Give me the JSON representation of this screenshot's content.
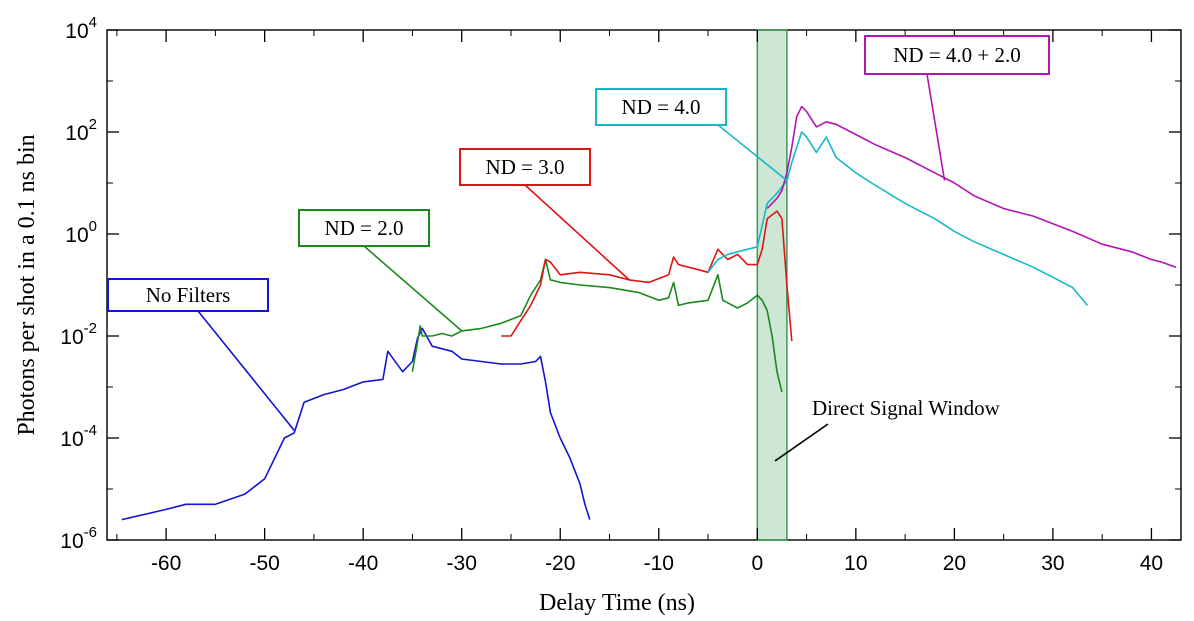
{
  "chart_data": {
    "type": "line",
    "title": "",
    "xlabel": "Delay Time (ns)",
    "ylabel": "Photons per shot in a 0.1 ns bin",
    "xlim": [
      -66,
      43
    ],
    "ylim_log10": [
      -6,
      4
    ],
    "yscale": "log",
    "x_ticks": [
      -60,
      -50,
      -40,
      -30,
      -20,
      -10,
      0,
      10,
      20,
      30,
      40
    ],
    "x_tick_labels": [
      "-60",
      "-50",
      "-40",
      "-30",
      "-20",
      "-10",
      "0",
      "10",
      "20",
      "30",
      "40"
    ],
    "y_ticks_log10": [
      -6,
      -4,
      -2,
      0,
      2,
      4
    ],
    "y_tick_labels": [
      {
        "base": "10",
        "exp": "-6"
      },
      {
        "base": "10",
        "exp": "-4"
      },
      {
        "base": "10",
        "exp": "-2"
      },
      {
        "base": "10",
        "exp": "0"
      },
      {
        "base": "10",
        "exp": "2"
      },
      {
        "base": "10",
        "exp": "4"
      }
    ],
    "grid": false,
    "shaded_region": {
      "x": [
        0,
        3
      ],
      "label": "Direct Signal Window",
      "color": "#3a9a55"
    },
    "series": [
      {
        "name": "No Filters",
        "color": "#1414d2",
        "x": [
          -64.5,
          -60,
          -58,
          -55,
          -52,
          -50,
          -48,
          -47,
          -46,
          -44,
          -42,
          -40,
          -38,
          -37.5,
          -36,
          -35,
          -34.5,
          -34,
          -33,
          -31,
          -30,
          -28,
          -26,
          -24,
          -22.5,
          -22,
          -21.5,
          -21,
          -20,
          -19,
          -18,
          -17.5,
          -17
        ],
        "log10_y": [
          -5.6,
          -5.4,
          -5.3,
          -5.3,
          -5.1,
          -4.8,
          -4.0,
          -3.9,
          -3.3,
          -3.15,
          -3.05,
          -2.9,
          -2.85,
          -2.3,
          -2.7,
          -2.5,
          -2.05,
          -1.85,
          -2.2,
          -2.3,
          -2.45,
          -2.5,
          -2.55,
          -2.55,
          -2.5,
          -2.4,
          -2.9,
          -3.5,
          -4.0,
          -4.4,
          -4.9,
          -5.3,
          -5.6
        ]
      },
      {
        "name": "ND = 2.0",
        "color": "#1a8a1a",
        "x": [
          -35,
          -34.2,
          -34,
          -33,
          -32,
          -31,
          -30,
          -28,
          -26,
          -24,
          -23,
          -22,
          -21.5,
          -21,
          -20,
          -18,
          -15,
          -12,
          -10,
          -9,
          -8.5,
          -8,
          -7,
          -5,
          -4,
          -3.5,
          -3,
          -2,
          -1,
          0,
          0.5,
          1,
          1.5,
          2,
          2.5
        ],
        "log10_y": [
          -2.7,
          -1.8,
          -2.0,
          -2.0,
          -1.95,
          -2.0,
          -1.9,
          -1.85,
          -1.75,
          -1.6,
          -1.2,
          -0.9,
          -0.5,
          -0.9,
          -0.95,
          -1.0,
          -1.05,
          -1.15,
          -1.3,
          -1.25,
          -0.95,
          -1.4,
          -1.35,
          -1.3,
          -0.8,
          -1.3,
          -1.35,
          -1.45,
          -1.35,
          -1.2,
          -1.3,
          -1.5,
          -2.0,
          -2.7,
          -3.1
        ]
      },
      {
        "name": "ND = 3.0",
        "color": "#e01414",
        "x": [
          -26,
          -25,
          -24,
          -23,
          -22,
          -21.5,
          -21,
          -20,
          -18,
          -15,
          -13,
          -11,
          -9,
          -8.5,
          -8,
          -7,
          -6,
          -5,
          -4,
          -3.5,
          -3,
          -2,
          -1,
          0,
          0.5,
          1,
          2,
          2.5,
          3,
          3.5
        ],
        "log10_y": [
          -2.0,
          -2.0,
          -1.7,
          -1.4,
          -1.0,
          -0.5,
          -0.55,
          -0.8,
          -0.75,
          -0.8,
          -0.9,
          -0.95,
          -0.8,
          -0.45,
          -0.6,
          -0.65,
          -0.7,
          -0.75,
          -0.3,
          -0.4,
          -0.5,
          -0.4,
          -0.6,
          -0.6,
          -0.3,
          0.3,
          0.45,
          0.3,
          -1.0,
          -2.1
        ]
      },
      {
        "name": "ND = 4.0",
        "color": "#14b9c8",
        "x": [
          -5,
          -4,
          -3,
          -2,
          -1,
          0,
          1,
          2,
          3,
          3.5,
          4,
          4.5,
          5,
          6,
          7,
          8,
          10,
          12,
          15,
          18,
          20,
          22,
          25,
          28,
          30,
          32,
          33.5
        ],
        "log10_y": [
          -0.75,
          -0.5,
          -0.4,
          -0.35,
          -0.3,
          -0.25,
          0.6,
          0.8,
          1.05,
          1.4,
          1.7,
          2.0,
          1.9,
          1.6,
          1.9,
          1.5,
          1.2,
          0.95,
          0.6,
          0.3,
          0.05,
          -0.15,
          -0.4,
          -0.65,
          -0.85,
          -1.05,
          -1.4
        ]
      },
      {
        "name": "ND = 4.0 + 2.0",
        "color": "#b414b4",
        "x": [
          1,
          2,
          2.5,
          3,
          3.5,
          4,
          4.5,
          5,
          6,
          7,
          8,
          10,
          12,
          15,
          18,
          20,
          22,
          25,
          28,
          30,
          32,
          35,
          38,
          40,
          41,
          42.5
        ],
        "log10_y": [
          0.5,
          0.7,
          0.85,
          1.2,
          1.7,
          2.3,
          2.5,
          2.4,
          2.1,
          2.2,
          2.15,
          1.95,
          1.75,
          1.5,
          1.2,
          1.0,
          0.75,
          0.5,
          0.35,
          0.2,
          0.05,
          -0.2,
          -0.35,
          -0.5,
          -0.55,
          -0.65
        ]
      }
    ],
    "annotations": [
      {
        "text": "No Filters",
        "series": "No Filters",
        "color": "#1414d2",
        "arrow_to": {
          "x": -47,
          "log10_y": -3.85
        }
      },
      {
        "text": "ND = 2.0",
        "series": "ND = 2.0",
        "color": "#1a8a1a",
        "arrow_to": {
          "x": -30,
          "log10_y": -1.9
        }
      },
      {
        "text": "ND = 3.0",
        "series": "ND = 3.0",
        "color": "#e01414",
        "arrow_to": {
          "x": -13,
          "log10_y": -0.9
        }
      },
      {
        "text": "ND = 4.0",
        "series": "ND = 4.0",
        "color": "#14b9c8",
        "arrow_to": {
          "x": 3,
          "log10_y": 1.05
        }
      },
      {
        "text": "ND = 4.0 + 2.0",
        "series": "ND = 4.0 + 2.0",
        "color": "#b414b4",
        "arrow_to": {
          "x": 19,
          "log10_y": 1.05
        }
      },
      {
        "text": "Direct Signal Window",
        "series": "",
        "color": "#000000",
        "arrow_to": {
          "x": 1.8,
          "log10_y": -4.45
        }
      }
    ]
  }
}
